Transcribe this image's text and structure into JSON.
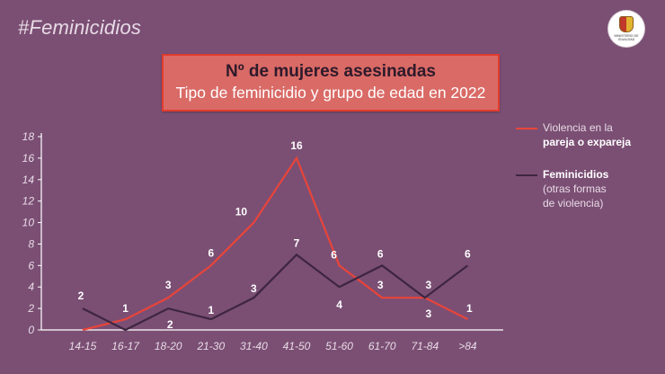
{
  "header": {
    "hashtag": "#Feminicidios",
    "seal_text": "MINISTERIO DE IGUALDAD"
  },
  "title_box": {
    "title": "Nº de mujeres asesinadas",
    "subtitle": "Tipo de feminicidio y grupo de edad en 2022"
  },
  "legend": {
    "partner": {
      "line1": "Violencia en la",
      "line2_bold": "pareja o expareja"
    },
    "other": {
      "line1_bold": "Feminicidios",
      "line2": "(otras formas",
      "line3": "de violencia)"
    }
  },
  "colors": {
    "background": "#7b4f74",
    "partner_line": "#e8443a",
    "other_line": "#3e2540",
    "title_fill": "#d96a66",
    "title_border": "#e23b2f",
    "axis": "#ffffff",
    "label_text": "#ffffff",
    "tick_text": "#e8dbe6"
  },
  "chart_data": {
    "type": "line",
    "categories": [
      "14-15",
      "16-17",
      "18-20",
      "21-30",
      "31-40",
      "41-50",
      "51-60",
      "61-70",
      "71-84",
      ">84"
    ],
    "series": [
      {
        "name": "Violencia en la pareja o expareja",
        "values": [
          0,
          1,
          3,
          6,
          10,
          16,
          6,
          3,
          3,
          1
        ]
      },
      {
        "name": "Feminicidios (otras formas de violencia)",
        "values": [
          2,
          0,
          2,
          1,
          3,
          7,
          4,
          6,
          3,
          6
        ]
      }
    ],
    "data_labels": {
      "partner": [
        "",
        "1",
        "3",
        "6",
        "10",
        "16",
        "6",
        "3",
        "3",
        "1"
      ],
      "other": [
        "2",
        "",
        "2",
        "1",
        "3",
        "7",
        "4",
        "6",
        "3",
        "6"
      ]
    },
    "ylim": [
      0,
      18
    ],
    "yticks": [
      0,
      2,
      4,
      6,
      8,
      10,
      12,
      14,
      16,
      18
    ],
    "legend_position": "right",
    "grid": false
  }
}
